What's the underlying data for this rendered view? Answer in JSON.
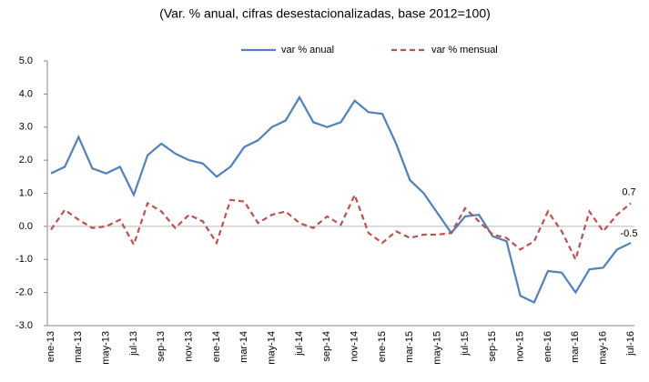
{
  "chart_data": {
    "type": "line",
    "title": "(Var. % anual, cifras desestacionalizadas, base 2012=100)",
    "categories": [
      "ene-13",
      null,
      "mar-13",
      null,
      "may-13",
      null,
      "jul-13",
      null,
      "sep-13",
      null,
      "nov-13",
      null,
      "ene-14",
      null,
      "mar-14",
      null,
      "may-14",
      null,
      "jul-14",
      null,
      "sep-14",
      null,
      "nov-14",
      null,
      "ene-15",
      null,
      "mar-15",
      null,
      "may-15",
      null,
      "jul-15",
      null,
      "sep-15",
      null,
      "nov-15",
      null,
      "ene-16",
      null,
      "mar-16",
      null,
      "may-16",
      null,
      "jul-16"
    ],
    "series": [
      {
        "name": "var % anual",
        "color": "#4f81bd",
        "dashed": false,
        "values": [
          1.6,
          1.8,
          2.7,
          1.75,
          1.6,
          1.8,
          0.95,
          2.15,
          2.5,
          2.2,
          2.0,
          1.9,
          1.5,
          1.8,
          2.4,
          2.6,
          3.0,
          3.2,
          3.9,
          3.15,
          3.0,
          3.15,
          3.8,
          3.45,
          3.4,
          2.5,
          1.4,
          1.0,
          0.4,
          -0.2,
          0.3,
          0.35,
          -0.3,
          -0.45,
          -2.1,
          -2.3,
          -1.35,
          -1.4,
          -2.0,
          -1.3,
          -1.25,
          -0.7,
          -0.5
        ]
      },
      {
        "name": "var % mensual",
        "color": "#c0504d",
        "dashed": true,
        "values": [
          -0.1,
          0.5,
          0.2,
          -0.05,
          0.0,
          0.2,
          -0.55,
          0.7,
          0.45,
          -0.05,
          0.35,
          0.15,
          -0.5,
          0.8,
          0.75,
          0.1,
          0.35,
          0.45,
          0.1,
          -0.05,
          0.3,
          0.05,
          0.95,
          -0.2,
          -0.5,
          -0.15,
          -0.35,
          -0.25,
          -0.25,
          -0.2,
          0.55,
          0.15,
          -0.25,
          -0.35,
          -0.7,
          -0.45,
          0.45,
          -0.15,
          -1.0,
          0.45,
          -0.15,
          0.35,
          0.7
        ]
      }
    ],
    "ylim": [
      -3,
      5
    ],
    "yticks": [
      {
        "value": -3,
        "label": "-3.0"
      },
      {
        "value": -2,
        "label": "-2.0"
      },
      {
        "value": -1,
        "label": "-1.0"
      },
      {
        "value": 0,
        "label": "0.0"
      },
      {
        "value": 1,
        "label": "1.0"
      },
      {
        "value": 2,
        "label": "2.0"
      },
      {
        "value": 3,
        "label": "3.0"
      },
      {
        "value": 4,
        "label": "4.0"
      },
      {
        "value": 5,
        "label": "5.0"
      }
    ],
    "grid": false,
    "legend": "top"
  }
}
